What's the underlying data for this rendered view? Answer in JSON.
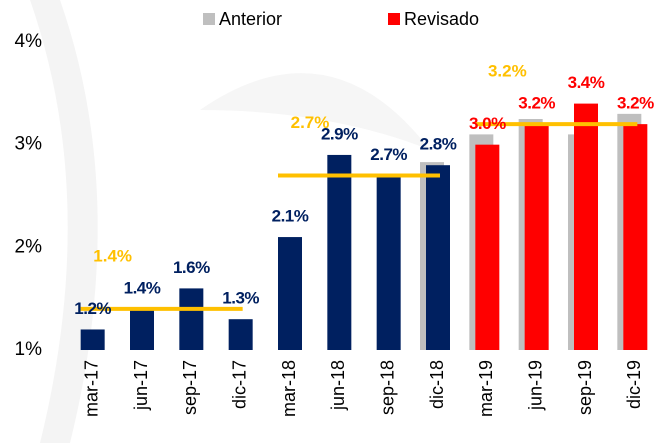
{
  "chart_data": {
    "type": "bar",
    "categories": [
      "mar-17",
      "jun-17",
      "sep-17",
      "dic-17",
      "mar-18",
      "jun-18",
      "sep-18",
      "dic-18",
      "mar-19",
      "jun-19",
      "sep-19",
      "dic-19"
    ],
    "series": [
      {
        "name": "Anterior",
        "color": "#bfbfbf",
        "values": [
          null,
          null,
          null,
          null,
          null,
          null,
          null,
          2.83,
          3.1,
          3.25,
          3.1,
          3.3
        ]
      },
      {
        "name": "Revisado",
        "color": "#ff0000",
        "colors": [
          "#002060",
          "#002060",
          "#002060",
          "#002060",
          "#002060",
          "#002060",
          "#002060",
          "#002060",
          "#ff0000",
          "#ff0000",
          "#ff0000",
          "#ff0000"
        ],
        "values": [
          1.2,
          1.4,
          1.6,
          1.3,
          2.1,
          2.9,
          2.7,
          2.8,
          3.0,
          3.2,
          3.4,
          3.2
        ],
        "value_labels": [
          "1.2%",
          "1.4%",
          "1.6%",
          "1.3%",
          "2.1%",
          "2.9%",
          "2.7%",
          "2.8%",
          "3.0%",
          "3.2%",
          "3.4%",
          "3.2%"
        ]
      }
    ],
    "averages": [
      {
        "value": 1.4,
        "label": "1.4%",
        "from": "mar-17",
        "to": "dic-17",
        "color": "#ffc000"
      },
      {
        "value": 2.7,
        "label": "2.7%",
        "from": "mar-18",
        "to": "dic-18",
        "color": "#ffc000"
      },
      {
        "value": 3.2,
        "label": "3.2%",
        "from": "mar-19",
        "to": "dic-19",
        "color": "#ffc000"
      }
    ],
    "ylim": [
      1,
      4
    ],
    "yticks": [
      {
        "value": 1,
        "label": "1%"
      },
      {
        "value": 2,
        "label": "2%"
      },
      {
        "value": 3,
        "label": "3%"
      },
      {
        "value": 4,
        "label": "4%"
      }
    ],
    "grid": false,
    "legend": "top"
  }
}
